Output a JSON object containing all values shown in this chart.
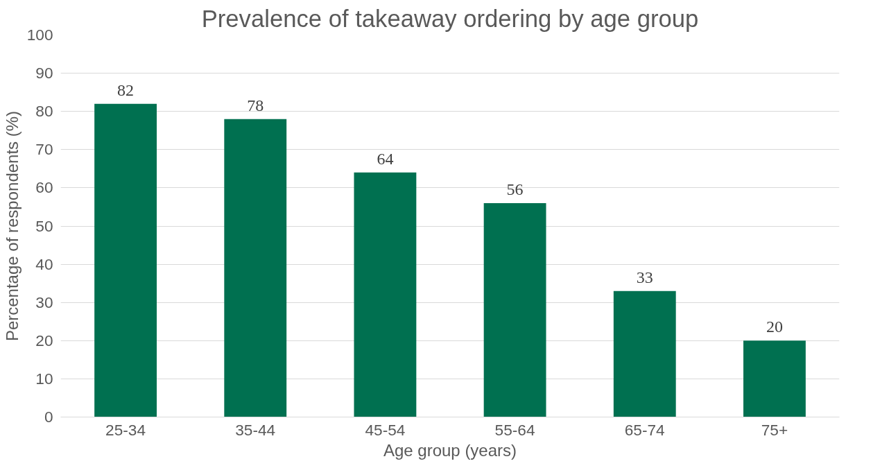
{
  "chart_data": {
    "type": "bar",
    "title": "Prevalence of takeaway ordering by age group",
    "xlabel": "Age group (years)",
    "ylabel": "Percentage of respondents (%)",
    "categories": [
      "25-34",
      "35-44",
      "45-54",
      "55-64",
      "65-74",
      "75+"
    ],
    "values": [
      82,
      78,
      64,
      56,
      33,
      20
    ],
    "color": "#007050",
    "ylim": [
      0,
      100
    ],
    "yticks": [
      0,
      10,
      20,
      30,
      40,
      50,
      60,
      70,
      80,
      90,
      100
    ],
    "grid": "y",
    "data_labels": true
  }
}
